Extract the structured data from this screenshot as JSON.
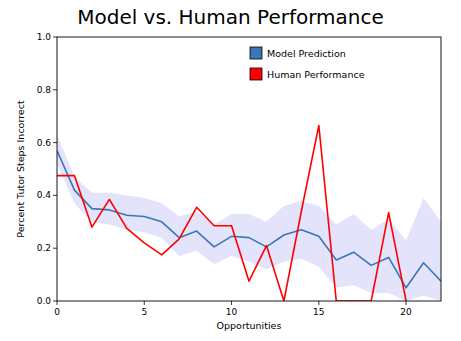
{
  "chart_data": {
    "type": "line",
    "title": "Model vs. Human Performance",
    "x_label": "Opportunities",
    "y_label": "Percent Tutor Steps Incorrect",
    "x": [
      0,
      1,
      2,
      3,
      4,
      5,
      6,
      7,
      8,
      9,
      10,
      11,
      12,
      13,
      14,
      15,
      16,
      17,
      18,
      19,
      20,
      21,
      22
    ],
    "series": [
      {
        "name": "Model Prediction",
        "color": "#3a78b5",
        "values": [
          0.57,
          0.42,
          0.35,
          0.345,
          0.325,
          0.32,
          0.3,
          0.24,
          0.265,
          0.205,
          0.245,
          0.24,
          0.205,
          0.25,
          0.27,
          0.245,
          0.155,
          0.185,
          0.135,
          0.165,
          0.05,
          0.145,
          0.075
        ],
        "lower": [
          0.52,
          0.37,
          0.3,
          0.29,
          0.27,
          0.26,
          0.24,
          0.17,
          0.19,
          0.14,
          0.17,
          0.15,
          0.12,
          0.15,
          0.16,
          0.13,
          0.05,
          0.06,
          0.03,
          0.03,
          0.0,
          0.02,
          0.0
        ],
        "upper": [
          0.63,
          0.47,
          0.41,
          0.41,
          0.4,
          0.39,
          0.37,
          0.32,
          0.34,
          0.29,
          0.33,
          0.33,
          0.3,
          0.36,
          0.38,
          0.36,
          0.29,
          0.33,
          0.27,
          0.31,
          0.23,
          0.39,
          0.3
        ]
      },
      {
        "name": "Human Performance",
        "color": "#ff0000",
        "values": [
          0.475,
          0.475,
          0.28,
          0.385,
          0.275,
          0.22,
          0.175,
          0.235,
          0.355,
          0.285,
          0.285,
          0.075,
          0.21,
          0.0,
          0.34,
          0.665,
          0.0,
          0.0,
          0.0,
          0.335,
          0.0,
          null,
          null
        ]
      }
    ],
    "xlim": [
      0,
      22
    ],
    "xticks": [
      0,
      5,
      10,
      15,
      20
    ],
    "ylim": [
      0,
      1
    ],
    "yticks": [
      {
        "value": 0,
        "label": "0.0"
      },
      0.2,
      0.4,
      0.6,
      0.8,
      {
        "value": 1,
        "label": "1.0"
      }
    ],
    "legend": "upper right",
    "grid": false
  }
}
